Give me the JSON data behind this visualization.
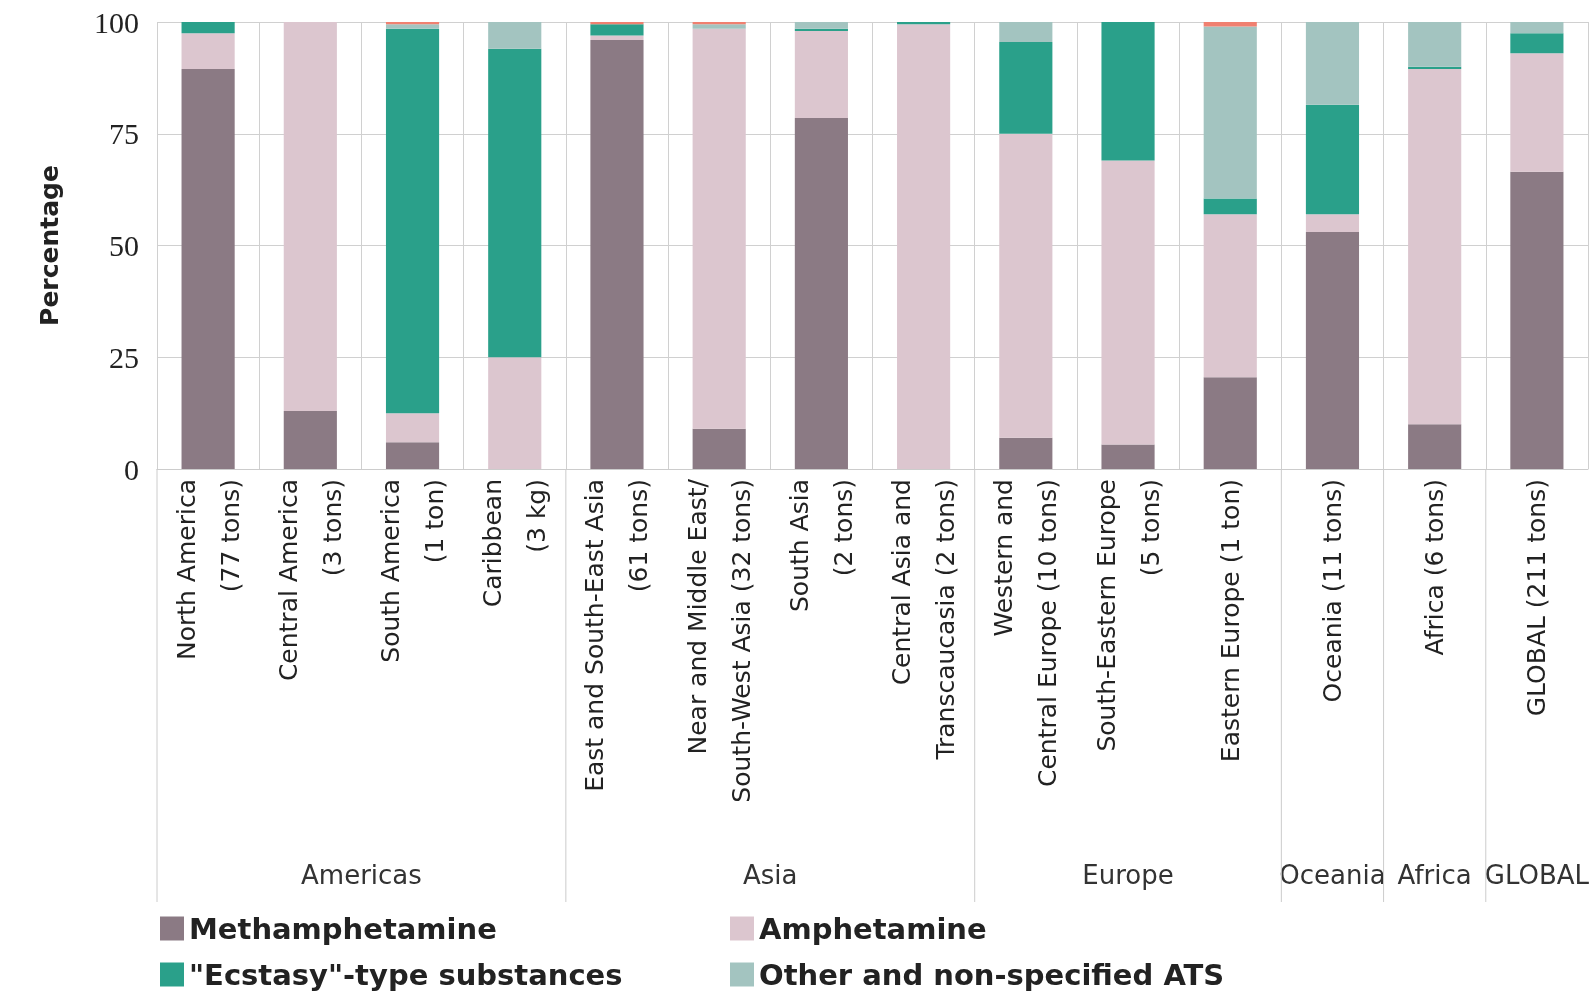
{
  "chart_data": {
    "type": "bar",
    "stacked": true,
    "ylabel": "Percentage",
    "categories": [
      "North America\n(77 tons)",
      "Central America\n(3 tons)",
      "South America\n(1 ton)",
      "Caribbean\n(3 kg)",
      "East and South-East Asia\n(61 tons)",
      "Near and Middle East/\nSouth-West Asia (32 tons)",
      "South Asia\n(2 tons)",
      "Central Asia and\nTranscaucasia (2 tons)",
      "Western and\nCentral Europe (10 tons)",
      "South-Eastern Europe\n(5 tons)",
      "Eastern Europe (1 ton)",
      "Oceania (11 tons)",
      "Africa (6 tons)",
      "GLOBAL (211 tons)"
    ],
    "series": [
      {
        "name": "Methamphetamine",
        "color": "#8b7a84",
        "values": [
          89.5,
          13,
          6,
          0,
          96,
          9,
          78.5,
          0,
          7,
          5.5,
          20.5,
          53,
          10,
          66.5
        ]
      },
      {
        "name": "Amphetamine",
        "color": "#dcc6cf",
        "values": [
          8,
          87,
          6.5,
          25,
          1,
          89.5,
          19.5,
          99.5,
          68,
          63.5,
          36.5,
          4,
          79.5,
          26.5
        ]
      },
      {
        "name": "\"Ecstasy\"-type substances",
        "color": "#2aa08a",
        "values": [
          2.5,
          0,
          86,
          69,
          2.5,
          0,
          0.5,
          0.5,
          20.5,
          31,
          3.5,
          24.5,
          0.5,
          4.5
        ]
      },
      {
        "name": "Other and non-specified ATS",
        "color": "#a3c4c0",
        "values": [
          0,
          0,
          1,
          6,
          0,
          1,
          1.5,
          0,
          4.5,
          0,
          38.5,
          18.5,
          10,
          2.5
        ]
      },
      {
        "color": "#f08070",
        "values": [
          0,
          0,
          0.5,
          0,
          0.5,
          0.5,
          0,
          0,
          0,
          0,
          1,
          0,
          0,
          0
        ]
      }
    ],
    "annotations": [
      "Americas",
      "Asia",
      "Europe",
      "Oceania",
      "Africa",
      "GLOBAL"
    ],
    "ylim": [
      0,
      100
    ],
    "yticks": [
      0,
      25,
      50,
      75,
      100
    ],
    "grid": true,
    "legend": "bottom left"
  }
}
